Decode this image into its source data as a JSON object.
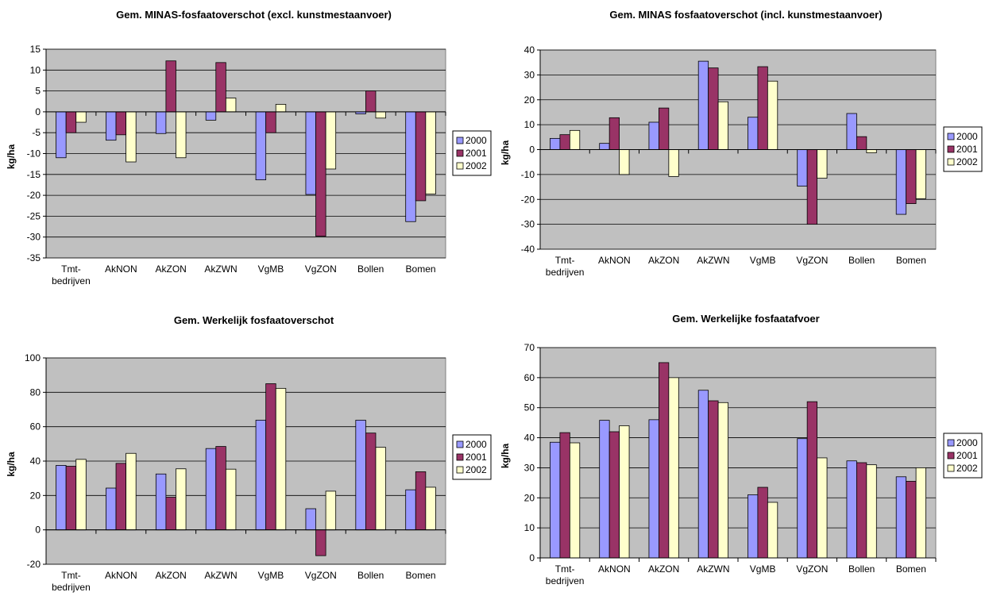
{
  "colors": {
    "plot_bg": "#c0c0c0",
    "s2000": "#9999ff",
    "s2001": "#993366",
    "s2002": "#ffffcc"
  },
  "chart_data": [
    {
      "type": "bar",
      "title": "Gem. MINAS-fosfaatoverschot (excl. kunstmestaanvoer)",
      "ylabel": "kg/ha",
      "categories": [
        "Tmt-|bedrijven",
        "AkNON",
        "AkZON",
        "AkZWN",
        "VgMB",
        "VgZON",
        "Bollen",
        "Bomen"
      ],
      "ylim": [
        -35,
        15
      ],
      "yticks": [
        15,
        10,
        5,
        0,
        -5,
        -10,
        -15,
        -20,
        -25,
        -30,
        -35
      ],
      "grid": true,
      "legend": "right",
      "series": [
        {
          "name": "2000",
          "values": [
            -11,
            -6.8,
            -5.2,
            -2,
            -16.3,
            -19.8,
            -0.5,
            -26.3
          ]
        },
        {
          "name": "2001",
          "values": [
            -5,
            -5.5,
            12.2,
            11.8,
            -5,
            -29.8,
            5,
            -21.3
          ]
        },
        {
          "name": "2002",
          "values": [
            -2.5,
            -12,
            -11,
            3.3,
            1.8,
            -13.7,
            -1.5,
            -19.7
          ]
        }
      ]
    },
    {
      "type": "bar",
      "title": "Gem. MINAS fosfaatoverschot  (incl. kunstmestaanvoer)",
      "ylabel": "kg/ha",
      "categories": [
        "Tmt-|bedrijven",
        "AkNON",
        "AkZON",
        "AkZWN",
        "VgMB",
        "VgZON",
        "Bollen",
        "Bomen"
      ],
      "ylim": [
        -40,
        40
      ],
      "yticks": [
        40,
        30,
        20,
        10,
        0,
        -10,
        -20,
        -30,
        -40
      ],
      "grid": true,
      "legend": "right",
      "series": [
        {
          "name": "2000",
          "values": [
            4.5,
            2.5,
            11,
            35.5,
            13,
            -14.7,
            14.5,
            -26
          ]
        },
        {
          "name": "2001",
          "values": [
            6,
            12.8,
            16.7,
            32.8,
            33.3,
            -30,
            5.2,
            -21.7
          ]
        },
        {
          "name": "2002",
          "values": [
            7.7,
            -10,
            -10.8,
            19.2,
            27.5,
            -11.5,
            -1.3,
            -19.7
          ]
        }
      ]
    },
    {
      "type": "bar",
      "title": "Gem. Werkelijk fosfaatoverschot",
      "ylabel": "kg/ha",
      "categories": [
        "Tmt-|bedrijven",
        "AkNON",
        "AkZON",
        "AkZWN",
        "VgMB",
        "VgZON",
        "Bollen",
        "Bomen"
      ],
      "ylim": [
        -20,
        100
      ],
      "yticks": [
        100,
        80,
        60,
        40,
        20,
        0,
        -20
      ],
      "grid": true,
      "legend": "right",
      "series": [
        {
          "name": "2000",
          "values": [
            37.5,
            24.3,
            32.5,
            47.3,
            63.8,
            12.3,
            63.8,
            23.3
          ]
        },
        {
          "name": "2001",
          "values": [
            37,
            38.7,
            19,
            48.5,
            85,
            -15,
            56.3,
            33.8
          ]
        },
        {
          "name": "2002",
          "values": [
            41,
            44.5,
            35.5,
            35.3,
            82.3,
            22.5,
            48,
            24.8
          ]
        }
      ]
    },
    {
      "type": "bar",
      "title": "Gem. Werkelijke fosfaatafvoer",
      "ylabel": "kg/ha",
      "categories": [
        "Tmt-|bedrijven",
        "AkNON",
        "AkZON",
        "AkZWN",
        "VgMB",
        "VgZON",
        "Bollen",
        "Bomen"
      ],
      "ylim": [
        0,
        70
      ],
      "yticks": [
        70,
        60,
        50,
        40,
        30,
        20,
        10,
        0
      ],
      "grid": true,
      "legend": "right",
      "series": [
        {
          "name": "2000",
          "values": [
            38.5,
            45.8,
            46,
            55.8,
            21,
            39.7,
            32.3,
            27
          ]
        },
        {
          "name": "2001",
          "values": [
            41.7,
            42,
            65,
            52.3,
            23.5,
            52,
            31.7,
            25.5
          ]
        },
        {
          "name": "2002",
          "values": [
            38.3,
            44,
            60,
            51.7,
            18.5,
            33.3,
            31,
            30
          ]
        }
      ]
    }
  ]
}
